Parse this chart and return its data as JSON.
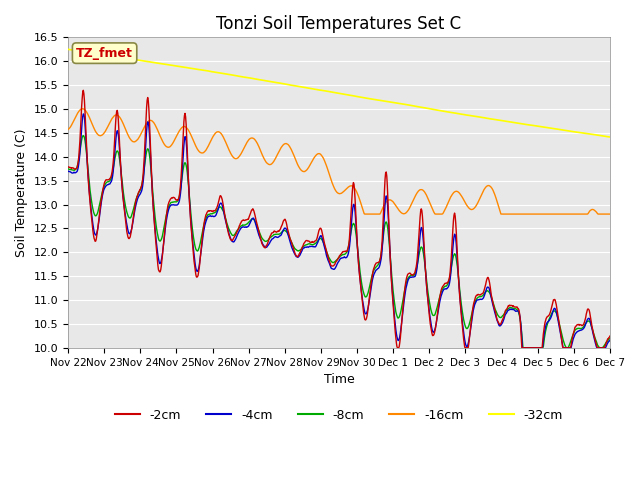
{
  "title": "Tonzi Soil Temperatures Set C",
  "xlabel": "Time",
  "ylabel": "Soil Temperature (C)",
  "ylim": [
    10.0,
    16.5
  ],
  "yticks": [
    10.0,
    10.5,
    11.0,
    11.5,
    12.0,
    12.5,
    13.0,
    13.5,
    14.0,
    14.5,
    15.0,
    15.5,
    16.0,
    16.5
  ],
  "colors": {
    "-2cm": "#cc0000",
    "-4cm": "#0000cc",
    "-8cm": "#00aa00",
    "-16cm": "#ff8800",
    "-32cm": "#ffff00"
  },
  "annotation_label": "TZ_fmet",
  "annotation_color": "#cc0000",
  "annotation_bg": "#ffffcc",
  "annotation_border": "#888844",
  "bg_color": "#e8e8e8",
  "tick_labels": [
    "Nov 22",
    "Nov 23",
    "Nov 24",
    "Nov 25",
    "Nov 26",
    "Nov 27",
    "Nov 28",
    "Nov 29",
    "Nov 30",
    "Dec 1",
    "Dec 2",
    "Dec 3",
    "Dec 4",
    "Dec 5",
    "Dec 6",
    "Dec 7"
  ]
}
